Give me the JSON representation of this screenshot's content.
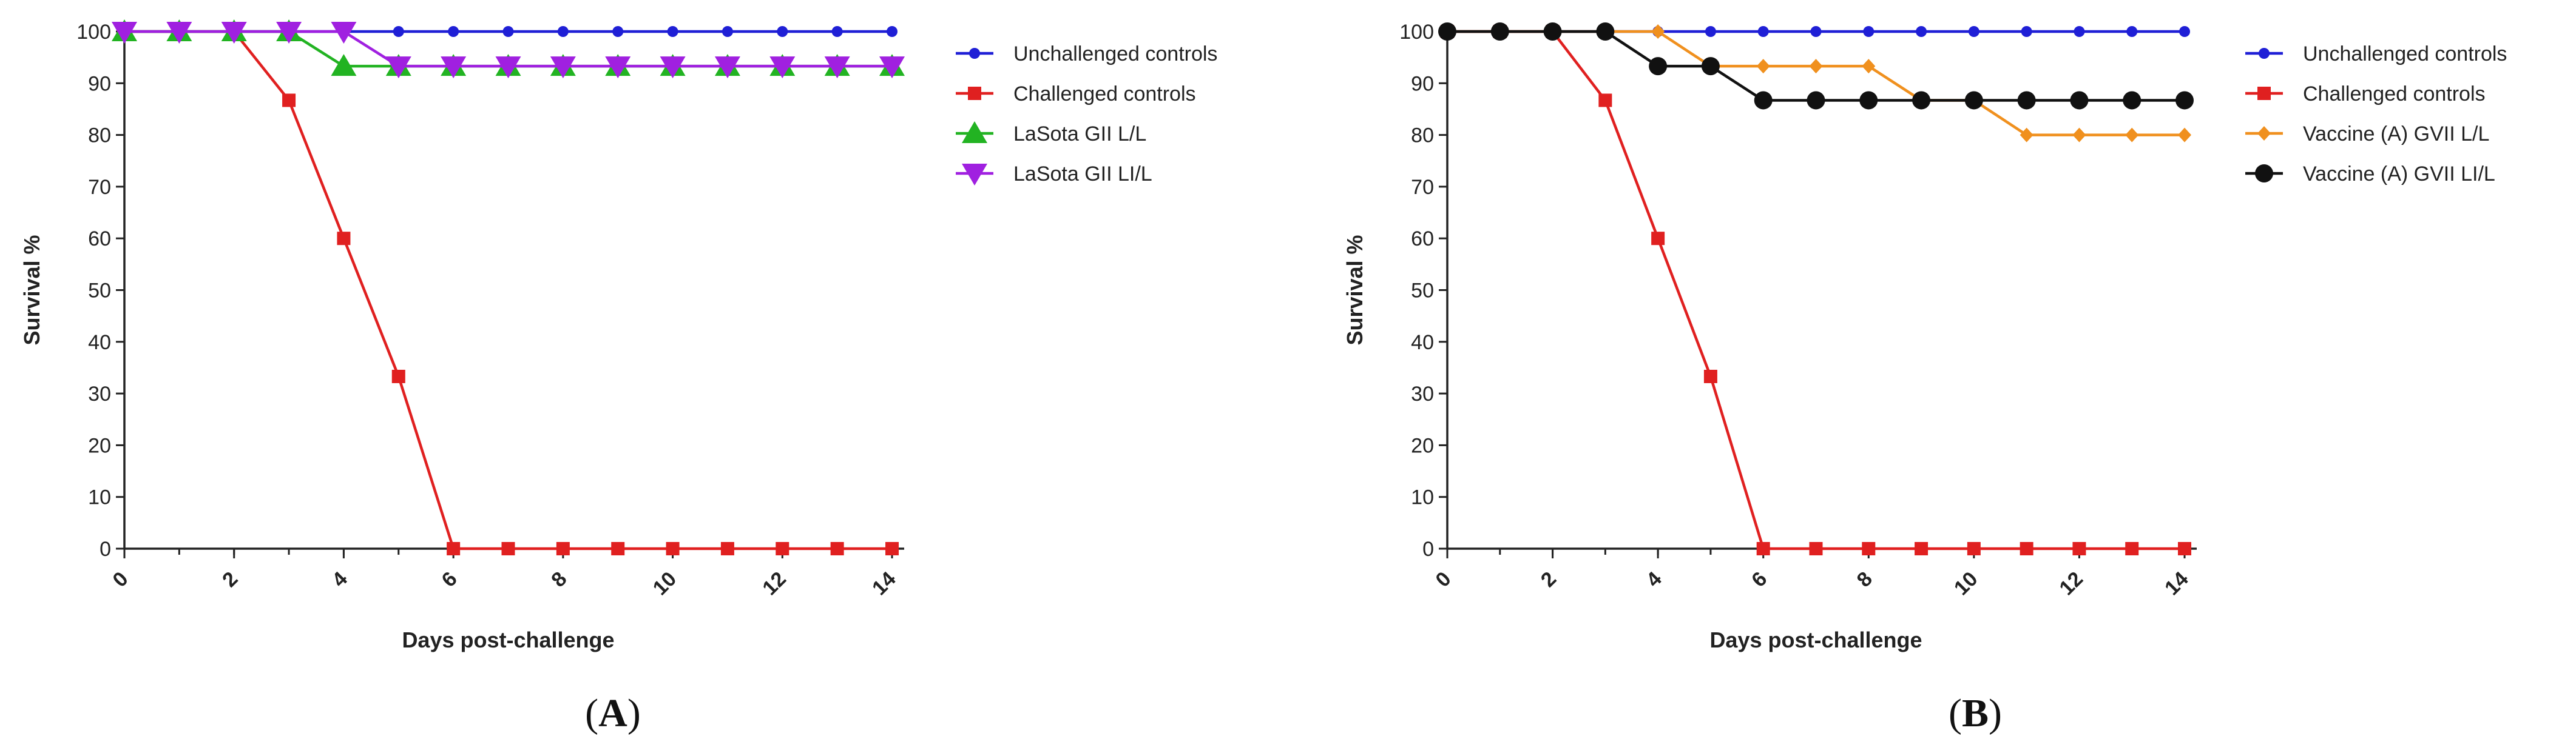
{
  "chart_data": [
    {
      "panel_label": "A",
      "type": "line",
      "xlabel": "Days post-challenge",
      "ylabel": "Survival %",
      "xlim": [
        0,
        14
      ],
      "ylim": [
        0,
        100
      ],
      "x_ticks": [
        0,
        2,
        4,
        6,
        8,
        10,
        12,
        14
      ],
      "y_ticks": [
        0,
        10,
        20,
        30,
        40,
        50,
        60,
        70,
        80,
        90,
        100
      ],
      "x": [
        0,
        1,
        2,
        3,
        4,
        5,
        6,
        7,
        8,
        9,
        10,
        11,
        12,
        13,
        14
      ],
      "legend_position": "right",
      "series": [
        {
          "name": "Unchallenged controls",
          "color": "#1f1fd6",
          "marker": "circle",
          "values": [
            100,
            100,
            100,
            100,
            100,
            100,
            100,
            100,
            100,
            100,
            100,
            100,
            100,
            100,
            100
          ]
        },
        {
          "name": "Challenged controls",
          "color": "#e02020",
          "marker": "square",
          "values": [
            100,
            100,
            100,
            86.7,
            60,
            33.3,
            0,
            0,
            0,
            0,
            0,
            0,
            0,
            0,
            0
          ]
        },
        {
          "name": "LaSota GII L/L",
          "color": "#22b322",
          "marker": "triangle-up",
          "values": [
            100,
            100,
            100,
            100,
            93.3,
            93.3,
            93.3,
            93.3,
            93.3,
            93.3,
            93.3,
            93.3,
            93.3,
            93.3,
            93.3
          ]
        },
        {
          "name": "LaSota GII LI/L",
          "color": "#a020e0",
          "marker": "triangle-down",
          "values": [
            100,
            100,
            100,
            100,
            100,
            93.3,
            93.3,
            93.3,
            93.3,
            93.3,
            93.3,
            93.3,
            93.3,
            93.3,
            93.3
          ]
        }
      ]
    },
    {
      "panel_label": "B",
      "type": "line",
      "xlabel": "Days post-challenge",
      "ylabel": "Survival %",
      "xlim": [
        0,
        14
      ],
      "ylim": [
        0,
        100
      ],
      "x_ticks": [
        0,
        2,
        4,
        6,
        8,
        10,
        12,
        14
      ],
      "y_ticks": [
        0,
        10,
        20,
        30,
        40,
        50,
        60,
        70,
        80,
        90,
        100
      ],
      "x": [
        0,
        1,
        2,
        3,
        4,
        5,
        6,
        7,
        8,
        9,
        10,
        11,
        12,
        13,
        14
      ],
      "legend_position": "right",
      "series": [
        {
          "name": "Unchallenged controls",
          "color": "#1f1fd6",
          "marker": "circle",
          "values": [
            100,
            100,
            100,
            100,
            100,
            100,
            100,
            100,
            100,
            100,
            100,
            100,
            100,
            100,
            100
          ]
        },
        {
          "name": "Challenged controls",
          "color": "#e02020",
          "marker": "square",
          "values": [
            100,
            100,
            100,
            86.7,
            60,
            33.3,
            0,
            0,
            0,
            0,
            0,
            0,
            0,
            0,
            0
          ]
        },
        {
          "name": "Vaccine (A) GVII L/L",
          "color": "#f0901e",
          "marker": "diamond",
          "values": [
            100,
            100,
            100,
            100,
            100,
            93.3,
            93.3,
            93.3,
            93.3,
            86.7,
            86.7,
            80,
            80,
            80,
            80
          ]
        },
        {
          "name": "Vaccine (A) GVII LI/L",
          "color": "#111111",
          "marker": "circle-large",
          "values": [
            100,
            100,
            100,
            100,
            93.3,
            93.3,
            86.7,
            86.7,
            86.7,
            86.7,
            86.7,
            86.7,
            86.7,
            86.7,
            86.7
          ]
        }
      ]
    }
  ]
}
